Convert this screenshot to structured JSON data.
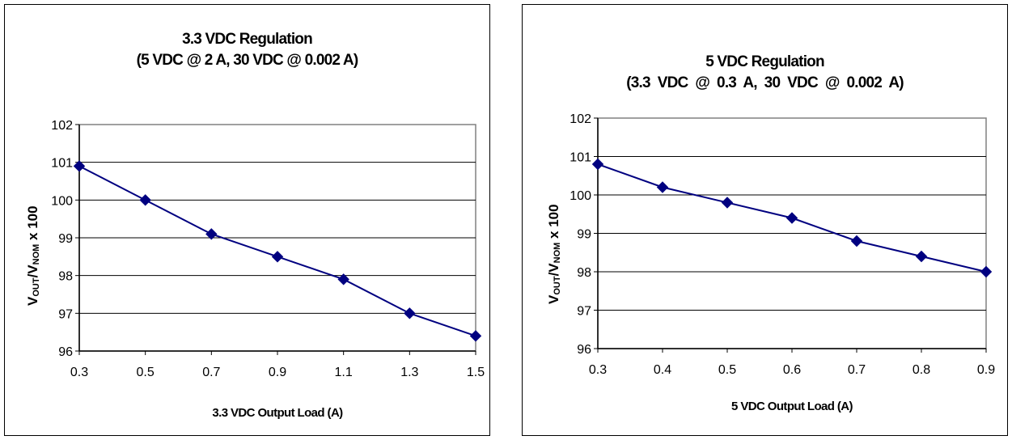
{
  "chart_data": [
    {
      "type": "line",
      "title": [
        "3.3 VDC Regulation",
        "(5 VDC @ 2 A,  30 VDC @ 0.002 A)"
      ],
      "xlabel": "3.3 VDC Output Load (A)",
      "ylabel": {
        "v1": "V",
        "sub1": "OUT",
        "mid": "/V",
        "sub2": "NOM",
        "tail": " x 100"
      },
      "x": [
        0.3,
        0.5,
        0.7,
        0.9,
        1.1,
        1.3,
        1.5
      ],
      "xticks": [
        "0.3",
        "0.5",
        "0.7",
        "0.9",
        "1.1",
        "1.3",
        "1.5"
      ],
      "xlim": [
        0.3,
        1.5
      ],
      "ylim": [
        96,
        102
      ],
      "yticks": [
        "96",
        "97",
        "98",
        "99",
        "100",
        "101",
        "102"
      ],
      "series": [
        {
          "values": [
            100.9,
            100.0,
            99.1,
            98.5,
            97.9,
            97.0,
            96.4
          ],
          "color": "#000080",
          "marker": "diamond"
        }
      ],
      "grid": true,
      "legend": "none"
    },
    {
      "type": "line",
      "title": [
        "5 VDC Regulation",
        "(3.3  VDC  @  0.3  A,  30  VDC  @  0.002  A)"
      ],
      "xlabel": "5 VDC Output Load (A)",
      "ylabel": {
        "v1": "V",
        "sub1": "OUT",
        "mid": "/V",
        "sub2": "NOM",
        "tail": " x 100"
      },
      "x": [
        0.3,
        0.4,
        0.5,
        0.6,
        0.7,
        0.8,
        0.9
      ],
      "xticks": [
        "0.3",
        "0.4",
        "0.5",
        "0.6",
        "0.7",
        "0.8",
        "0.9"
      ],
      "xlim": [
        0.3,
        0.9
      ],
      "ylim": [
        96,
        102
      ],
      "yticks": [
        "96",
        "97",
        "98",
        "99",
        "100",
        "101",
        "102"
      ],
      "series": [
        {
          "values": [
            100.8,
            100.2,
            99.8,
            99.4,
            98.8,
            98.4,
            98.0
          ],
          "color": "#000080",
          "marker": "diamond"
        }
      ],
      "grid": true,
      "legend": "none"
    }
  ]
}
